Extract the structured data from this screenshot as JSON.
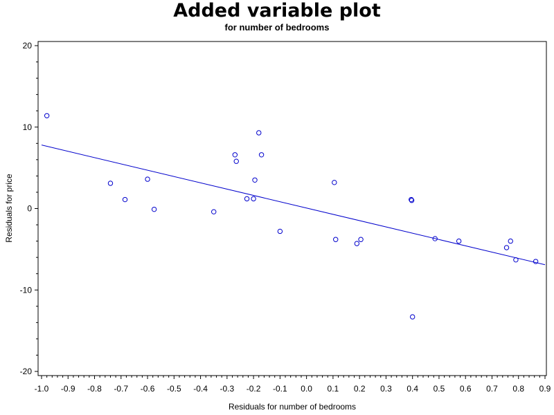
{
  "chart_data": {
    "type": "scatter",
    "title": "Added variable plot",
    "subtitle": "for number of bedrooms",
    "xlabel": "Residuals for number of bedrooms",
    "ylabel": "Residuals for price",
    "xlim": [
      -1.0,
      0.9
    ],
    "ylim": [
      -20,
      20
    ],
    "x_ticks": [
      -1.0,
      -0.9,
      -0.8,
      -0.7,
      -0.6,
      -0.5,
      -0.4,
      -0.3,
      -0.2,
      -0.1,
      0.0,
      0.1,
      0.2,
      0.3,
      0.4,
      0.5,
      0.6,
      0.7,
      0.8,
      0.9
    ],
    "x_tick_labels": [
      "-1.0",
      "-0.9",
      "-0.8",
      "-0.7",
      "-0.6",
      "-0.5",
      "-0.4",
      "-0.3",
      "-0.2",
      "-0.1",
      "0.0",
      "0.1",
      "0.2",
      "0.3",
      "0.4",
      "0.5",
      "0.6",
      "0.7",
      "0.8",
      "0.9"
    ],
    "y_ticks": [
      -20,
      -10,
      0,
      10,
      20
    ],
    "y_tick_labels": [
      "-20",
      "-10",
      "0",
      "10",
      "20"
    ],
    "grid": false,
    "series": [
      {
        "color": "#0000cc",
        "marker": "circle",
        "points": [
          {
            "x": -0.98,
            "y": 11.4
          },
          {
            "x": -0.74,
            "y": 3.1
          },
          {
            "x": -0.685,
            "y": 1.1
          },
          {
            "x": -0.6,
            "y": 3.6
          },
          {
            "x": -0.575,
            "y": -0.1
          },
          {
            "x": -0.35,
            "y": -0.4
          },
          {
            "x": -0.27,
            "y": 6.6
          },
          {
            "x": -0.265,
            "y": 5.8
          },
          {
            "x": -0.18,
            "y": 9.3
          },
          {
            "x": -0.17,
            "y": 6.6
          },
          {
            "x": -0.195,
            "y": 3.5
          },
          {
            "x": -0.225,
            "y": 1.2
          },
          {
            "x": -0.2,
            "y": 1.2
          },
          {
            "x": -0.1,
            "y": -2.8
          },
          {
            "x": 0.105,
            "y": 3.2
          },
          {
            "x": 0.11,
            "y": -3.8
          },
          {
            "x": 0.19,
            "y": -4.3
          },
          {
            "x": 0.205,
            "y": -3.8
          },
          {
            "x": 0.395,
            "y": 1.1
          },
          {
            "x": 0.397,
            "y": 1.0
          },
          {
            "x": 0.4,
            "y": -13.3
          },
          {
            "x": 0.485,
            "y": -3.7
          },
          {
            "x": 0.575,
            "y": -4.0
          },
          {
            "x": 0.755,
            "y": -4.8
          },
          {
            "x": 0.77,
            "y": -4.0
          },
          {
            "x": 0.79,
            "y": -6.3
          },
          {
            "x": 0.865,
            "y": -6.5
          }
        ]
      }
    ],
    "fit_line": {
      "color": "#0000cc",
      "points": [
        {
          "x": -1.0,
          "y": 7.8
        },
        {
          "x": 0.9,
          "y": -6.9
        }
      ]
    }
  }
}
